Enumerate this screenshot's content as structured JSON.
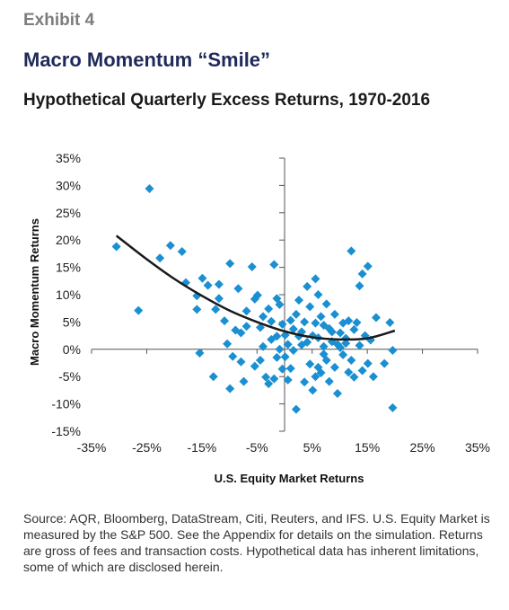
{
  "header": {
    "exhibit": "Exhibit 4",
    "title": "Macro Momentum “Smile”",
    "subtitle": "Hypothetical Quarterly Excess Returns, 1970-2016"
  },
  "footer": {
    "source": "Source: AQR, Bloomberg, DataStream, Citi, Reuters, and IFS. U.S. Equity Market is measured by the S&P 500. See the Appendix for details on the simulation. Returns are gross of fees and transaction costs. Hypothetical data has inherent limitations, some of which are disclosed herein."
  },
  "colors": {
    "marker": "#1a8fd1",
    "curve": "#1a1a1a",
    "axis": "#555555"
  },
  "chart_data": {
    "type": "scatter",
    "xlabel": "U.S. Equity Market Returns",
    "ylabel": "Macro Momentum Returns",
    "xlim": [
      -35,
      35
    ],
    "ylim": [
      -15,
      35
    ],
    "xticks": [
      -35,
      -25,
      -15,
      -5,
      5,
      15,
      25,
      35
    ],
    "xtick_labels": [
      "-35%",
      "-25%",
      "-15%",
      "-5%",
      "5%",
      "15%",
      "25%",
      "35%"
    ],
    "yticks": [
      -15,
      -10,
      -5,
      0,
      5,
      10,
      15,
      20,
      25,
      30,
      35
    ],
    "ytick_labels": [
      "-15%",
      "-10%",
      "-5%",
      "0%",
      "5%",
      "10%",
      "15%",
      "20%",
      "25%",
      "30%",
      "35%"
    ],
    "points": [
      [
        -30.5,
        18.8
      ],
      [
        -24.5,
        29.4
      ],
      [
        -26.5,
        7.1
      ],
      [
        -20.7,
        19.0
      ],
      [
        -18.6,
        17.9
      ],
      [
        -22.6,
        16.7
      ],
      [
        -17.9,
        12.2
      ],
      [
        -15.9,
        7.3
      ],
      [
        -14.9,
        13.0
      ],
      [
        -15.9,
        9.8
      ],
      [
        -13.9,
        11.7
      ],
      [
        -12.5,
        7.3
      ],
      [
        -11.9,
        11.9
      ],
      [
        -11.9,
        9.3
      ],
      [
        -10.9,
        5.2
      ],
      [
        -10.4,
        1.0
      ],
      [
        -9.9,
        15.7
      ],
      [
        -8.4,
        11.1
      ],
      [
        -8.9,
        3.5
      ],
      [
        -6.9,
        7.0
      ],
      [
        -5.9,
        15.1
      ],
      [
        -6.9,
        4.2
      ],
      [
        -7.9,
        3.0
      ],
      [
        -5.4,
        9.2
      ],
      [
        -4.9,
        9.9
      ],
      [
        -4.4,
        4.0
      ],
      [
        -3.9,
        6.0
      ],
      [
        -2.9,
        7.4
      ],
      [
        -2.4,
        5.1
      ],
      [
        -3.9,
        0.5
      ],
      [
        -1.9,
        15.5
      ],
      [
        -1.4,
        9.3
      ],
      [
        -0.9,
        8.2
      ],
      [
        -0.4,
        4.6
      ],
      [
        0.1,
        2.6
      ],
      [
        -12.9,
        -5.0
      ],
      [
        -15.4,
        -0.7
      ],
      [
        -9.9,
        -7.2
      ],
      [
        -9.4,
        -1.3
      ],
      [
        -7.9,
        -2.3
      ],
      [
        -7.4,
        -5.9
      ],
      [
        -5.4,
        -3.1
      ],
      [
        -4.4,
        -2.0
      ],
      [
        -3.4,
        -5.1
      ],
      [
        -2.9,
        -6.3
      ],
      [
        -1.9,
        -5.4
      ],
      [
        -1.4,
        -1.5
      ],
      [
        -0.4,
        -3.6
      ],
      [
        0.1,
        -1.4
      ],
      [
        0.6,
        -5.6
      ],
      [
        1.1,
        -3.5
      ],
      [
        1.6,
        -0.2
      ],
      [
        0.6,
        0.9
      ],
      [
        1.1,
        5.3
      ],
      [
        1.6,
        3.7
      ],
      [
        2.1,
        6.4
      ],
      [
        2.6,
        9.0
      ],
      [
        3.1,
        3.2
      ],
      [
        3.6,
        5.0
      ],
      [
        4.1,
        11.5
      ],
      [
        4.6,
        7.8
      ],
      [
        5.1,
        2.5
      ],
      [
        5.6,
        12.9
      ],
      [
        6.1,
        10.0
      ],
      [
        6.6,
        6.0
      ],
      [
        7.1,
        4.4
      ],
      [
        7.6,
        8.3
      ],
      [
        8.1,
        3.8
      ],
      [
        8.6,
        1.4
      ],
      [
        9.1,
        6.4
      ],
      [
        9.6,
        0.9
      ],
      [
        10.1,
        3.0
      ],
      [
        10.6,
        4.8
      ],
      [
        11.1,
        2.0
      ],
      [
        11.6,
        5.2
      ],
      [
        12.1,
        18.0
      ],
      [
        12.6,
        3.6
      ],
      [
        13.1,
        4.9
      ],
      [
        14.1,
        13.8
      ],
      [
        15.1,
        15.2
      ],
      [
        13.6,
        11.6
      ],
      [
        14.6,
        2.5
      ],
      [
        15.6,
        1.7
      ],
      [
        16.6,
        5.8
      ],
      [
        19.1,
        4.9
      ],
      [
        2.1,
        -11.0
      ],
      [
        3.6,
        -6.0
      ],
      [
        4.6,
        -2.7
      ],
      [
        5.1,
        -7.5
      ],
      [
        5.6,
        -5.0
      ],
      [
        6.1,
        -3.3
      ],
      [
        6.6,
        -4.3
      ],
      [
        7.1,
        -0.9
      ],
      [
        7.6,
        -2.0
      ],
      [
        8.1,
        -5.9
      ],
      [
        9.1,
        -3.3
      ],
      [
        9.6,
        -8.1
      ],
      [
        10.6,
        -1.0
      ],
      [
        11.6,
        -4.2
      ],
      [
        12.1,
        -2.0
      ],
      [
        12.6,
        -5.1
      ],
      [
        13.6,
        0.7
      ],
      [
        14.1,
        -3.9
      ],
      [
        15.1,
        -2.6
      ],
      [
        16.1,
        -5.0
      ],
      [
        18.1,
        -2.6
      ],
      [
        19.6,
        -0.2
      ],
      [
        19.6,
        -10.7
      ],
      [
        7.1,
        0.5
      ],
      [
        6.1,
        2.1
      ],
      [
        5.6,
        4.8
      ],
      [
        4.1,
        1.3
      ],
      [
        3.1,
        0.8
      ],
      [
        2.6,
        2.4
      ],
      [
        8.6,
        3.2
      ],
      [
        10.1,
        0.3
      ],
      [
        11.1,
        1.1
      ],
      [
        -1.4,
        2.4
      ],
      [
        -0.9,
        0.0
      ],
      [
        -2.4,
        1.8
      ]
    ],
    "curve": [
      [
        -30.5,
        20.8
      ],
      [
        -25,
        16.5
      ],
      [
        -20,
        12.9
      ],
      [
        -15,
        9.8
      ],
      [
        -10,
        7.1
      ],
      [
        -5,
        5.0
      ],
      [
        0,
        3.3
      ],
      [
        5,
        2.2
      ],
      [
        10,
        1.8
      ],
      [
        15,
        2.0
      ],
      [
        20,
        3.4
      ]
    ]
  }
}
